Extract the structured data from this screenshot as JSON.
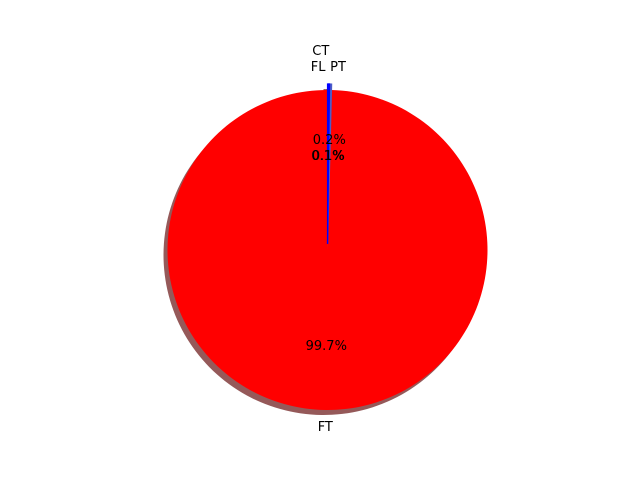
{
  "chart_data": {
    "type": "pie",
    "title": "",
    "categories": [
      "FT",
      "CT",
      "FL",
      "PT"
    ],
    "values": [
      99.7,
      0.2,
      0.1,
      0.1
    ],
    "pct_labels": [
      "99.7%",
      "0.2%",
      "0.1%",
      "0.1%"
    ],
    "colors": [
      "#ff0000",
      "#4c5cc8",
      "#0000ff",
      "#0000ff"
    ],
    "exploded": [
      "CT",
      "FL",
      "PT"
    ],
    "shadow": true,
    "start_angle_deg": 90,
    "legend": "none"
  }
}
